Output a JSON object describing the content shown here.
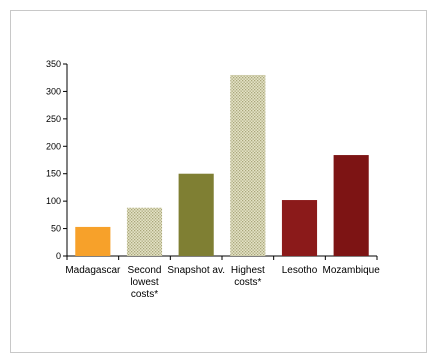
{
  "chart_data": {
    "type": "bar",
    "categories": [
      [
        "Madagascar"
      ],
      [
        "Second",
        "lowest",
        "costs*"
      ],
      [
        "Snapshot av."
      ],
      [
        "Highest",
        "costs*"
      ],
      [
        "Lesotho"
      ],
      [
        "Mozambique"
      ]
    ],
    "values": [
      53,
      88,
      150,
      330,
      102,
      184
    ],
    "colors": [
      "#f7a12a",
      "#d9d8b3",
      "#7f7f33",
      "#d9d8b3",
      "#8b1a1a",
      "#7d1414"
    ],
    "patterned": [
      false,
      true,
      false,
      true,
      false,
      false
    ],
    "ylim": [
      0,
      350
    ],
    "yticks": [
      0,
      50,
      100,
      150,
      200,
      250,
      300,
      350
    ],
    "grid": false,
    "legend": "none",
    "title": "",
    "xlabel": "",
    "ylabel": ""
  }
}
